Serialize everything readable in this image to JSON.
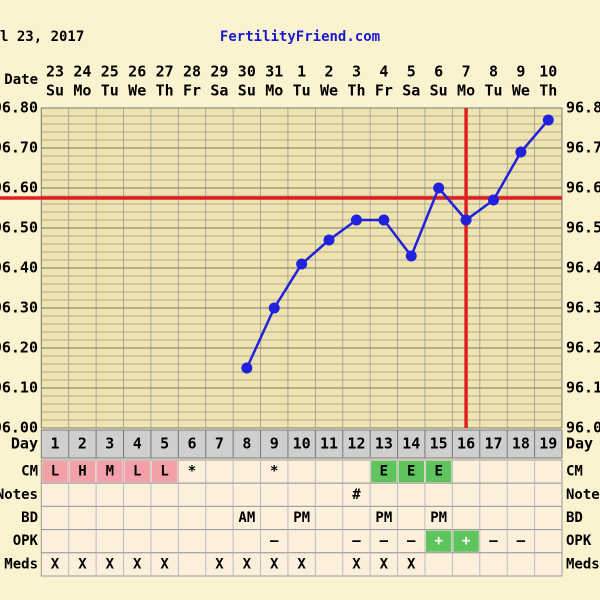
{
  "chart_data": {
    "type": "line",
    "title": "l 23, 2017",
    "subtitle": "FertilityFriend.com",
    "x_label": "Date",
    "dates": [
      "23",
      "24",
      "25",
      "26",
      "27",
      "28",
      "29",
      "30",
      "31",
      "1",
      "2",
      "3",
      "4",
      "5",
      "6",
      "7",
      "8",
      "9",
      "10"
    ],
    "weekdays": [
      "Su",
      "Mo",
      "Tu",
      "We",
      "Th",
      "Fr",
      "Sa",
      "Su",
      "Mo",
      "Tu",
      "We",
      "Th",
      "Fr",
      "Sa",
      "Su",
      "Mo",
      "Tu",
      "We",
      "Th"
    ],
    "day_label": "Day",
    "categories": [
      1,
      2,
      3,
      4,
      5,
      6,
      7,
      8,
      9,
      10,
      11,
      12,
      13,
      14,
      15,
      16,
      17,
      18,
      19
    ],
    "values": [
      null,
      null,
      null,
      null,
      null,
      null,
      null,
      96.15,
      96.3,
      96.41,
      96.47,
      96.52,
      96.52,
      96.43,
      96.6,
      96.52,
      96.57,
      96.69,
      96.77
    ],
    "color": "#2222dd",
    "ylim": [
      96.0,
      96.8
    ],
    "yticks": [
      {
        "value": 96.0,
        "label": "96.00"
      },
      {
        "value": 96.1,
        "label": "96.10"
      },
      {
        "value": 96.2,
        "label": "96.20"
      },
      {
        "value": 96.3,
        "label": "96.30"
      },
      {
        "value": 96.4,
        "label": "96.40"
      },
      {
        "value": 96.5,
        "label": "96.50"
      },
      {
        "value": 96.6,
        "label": "96.60"
      },
      {
        "value": 96.7,
        "label": "96.70"
      },
      {
        "value": 96.8,
        "label": "96.80"
      }
    ],
    "grid": true,
    "coverline": 96.575,
    "coverline_color": "#e02020",
    "ovulation_day": 16,
    "rows": [
      {
        "label": "CM",
        "values": [
          "L",
          "H",
          "M",
          "L",
          "L",
          "*",
          null,
          null,
          "*",
          null,
          null,
          null,
          "E",
          "E",
          "E",
          null,
          null,
          null,
          null
        ]
      },
      {
        "label": "Notes",
        "values": [
          null,
          null,
          null,
          null,
          null,
          null,
          null,
          null,
          null,
          null,
          null,
          "#",
          null,
          null,
          null,
          null,
          null,
          null,
          null
        ]
      },
      {
        "label": "BD",
        "values": [
          null,
          null,
          null,
          null,
          null,
          null,
          null,
          "AM",
          null,
          "PM",
          null,
          null,
          "PM",
          null,
          "PM",
          null,
          null,
          null,
          null
        ]
      },
      {
        "label": "OPK",
        "values": [
          null,
          null,
          null,
          null,
          null,
          null,
          null,
          null,
          "–",
          null,
          null,
          "–",
          "–",
          "–",
          "+",
          "+",
          "–",
          "–",
          null
        ]
      },
      {
        "label": "Meds",
        "values": [
          "X",
          "X",
          "X",
          "X",
          "X",
          null,
          "X",
          "X",
          "X",
          "X",
          null,
          "X",
          "X",
          "X",
          null,
          null,
          null,
          null,
          null
        ]
      }
    ]
  }
}
